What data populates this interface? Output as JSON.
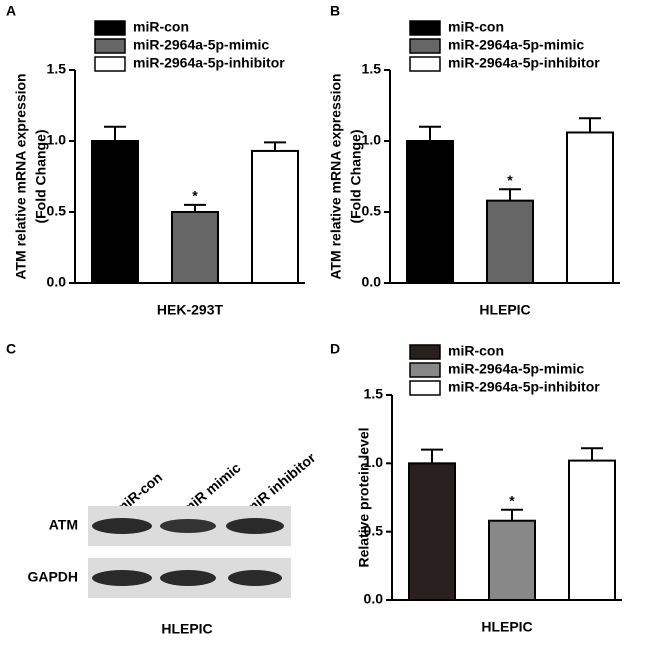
{
  "chart_data": [
    {
      "type": "bar",
      "panel": "A",
      "ylabel": [
        "ATM relative mRNA expression",
        "(Fold Change)"
      ],
      "xlabel": "HEK-293T",
      "series": [
        {
          "name": "miR-con",
          "color": "#000000"
        },
        {
          "name": "miR-2964a-5p-mimic",
          "color": "#666666"
        },
        {
          "name": "miR-2964a-5p-inhibitor",
          "color": "#ffffff"
        }
      ],
      "values": [
        1.0,
        0.5,
        0.93
      ],
      "errors": [
        0.1,
        0.05,
        0.06
      ],
      "value_annotations": [
        null,
        "*",
        null
      ],
      "ylim": [
        0,
        1.5
      ],
      "yticks": [
        {
          "value": 0,
          "label": "0.0"
        },
        0.5,
        {
          "value": 1,
          "label": "1.0"
        },
        1.5
      ],
      "legend": "top"
    },
    {
      "type": "bar",
      "panel": "B",
      "ylabel": [
        "ATM relative mRNA expression",
        "(Fold Change)"
      ],
      "xlabel": "HLEPIC",
      "series": [
        {
          "name": "miR-con",
          "color": "#000000"
        },
        {
          "name": "miR-2964a-5p-mimic",
          "color": "#666666"
        },
        {
          "name": "miR-2964a-5p-inhibitor",
          "color": "#ffffff"
        }
      ],
      "values": [
        1.0,
        0.58,
        1.06
      ],
      "errors": [
        0.1,
        0.08,
        0.1
      ],
      "value_annotations": [
        null,
        "*",
        null
      ],
      "ylim": [
        0,
        1.5
      ],
      "yticks": [
        {
          "value": 0,
          "label": "0.0"
        },
        0.5,
        {
          "value": 1,
          "label": "1.0"
        },
        1.5
      ],
      "legend": "top"
    },
    {
      "type": "bar",
      "panel": "D",
      "ylabel": [
        "Relative protein level"
      ],
      "xlabel": "HLEPIC",
      "series": [
        {
          "name": "miR-con",
          "color": "#2a2020"
        },
        {
          "name": "miR-2964a-5p-mimic",
          "color": "#888888"
        },
        {
          "name": "miR-2964a-5p-inhibitor",
          "color": "#ffffff"
        }
      ],
      "values": [
        1.0,
        0.58,
        1.02
      ],
      "errors": [
        0.1,
        0.08,
        0.09
      ],
      "value_annotations": [
        null,
        "*",
        null
      ],
      "ylim": [
        0,
        1.5
      ],
      "yticks": [
        {
          "value": 0,
          "label": "0.0"
        },
        0.5,
        {
          "value": 1,
          "label": "1.0"
        },
        1.5
      ],
      "legend": "top"
    }
  ],
  "blot": {
    "panel": "C",
    "lanes": [
      "miR-con",
      "miR mimic",
      "miR inhibitor"
    ],
    "rows": [
      "ATM",
      "GAPDH"
    ],
    "xlabel": "HLEPIC"
  }
}
